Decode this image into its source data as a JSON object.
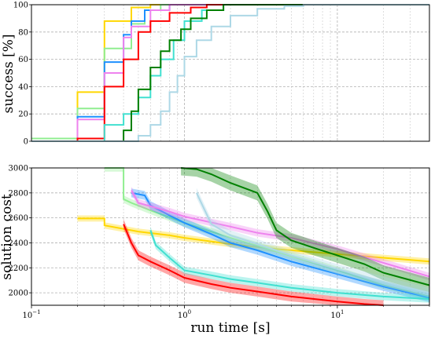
{
  "chart_data": [
    {
      "type": "line",
      "xscale": "log",
      "xlim": [
        0.1,
        40
      ],
      "ylim": [
        0,
        100
      ],
      "xlabel": "",
      "ylabel": "success [%]",
      "yticks": [
        "0",
        "20",
        "40",
        "60",
        "80",
        "100"
      ],
      "series": [
        {
          "color": "#ffd700",
          "points": [
            [
              0.1,
              2
            ],
            [
              0.2,
              2
            ],
            [
              0.2,
              36
            ],
            [
              0.3,
              36
            ],
            [
              0.3,
              88
            ],
            [
              0.45,
              88
            ],
            [
              0.45,
              98
            ],
            [
              0.6,
              98
            ],
            [
              0.6,
              100
            ],
            [
              40,
              100
            ]
          ]
        },
        {
          "color": "#90ee90",
          "points": [
            [
              0.1,
              2
            ],
            [
              0.2,
              2
            ],
            [
              0.2,
              24
            ],
            [
              0.3,
              24
            ],
            [
              0.3,
              68
            ],
            [
              0.45,
              68
            ],
            [
              0.45,
              86
            ],
            [
              0.55,
              86
            ],
            [
              0.55,
              96
            ],
            [
              0.7,
              96
            ],
            [
              0.7,
              100
            ],
            [
              40,
              100
            ]
          ]
        },
        {
          "color": "#1e90ff",
          "points": [
            [
              0.1,
              0
            ],
            [
              0.2,
              0
            ],
            [
              0.2,
              18
            ],
            [
              0.3,
              18
            ],
            [
              0.3,
              58
            ],
            [
              0.4,
              58
            ],
            [
              0.4,
              78
            ],
            [
              0.45,
              78
            ],
            [
              0.45,
              88
            ],
            [
              0.55,
              88
            ],
            [
              0.55,
              96
            ],
            [
              0.8,
              96
            ],
            [
              0.8,
              100
            ],
            [
              40,
              100
            ]
          ]
        },
        {
          "color": "#ee82ee",
          "points": [
            [
              0.1,
              0
            ],
            [
              0.2,
              0
            ],
            [
              0.2,
              16
            ],
            [
              0.3,
              16
            ],
            [
              0.3,
              50
            ],
            [
              0.4,
              50
            ],
            [
              0.4,
              76
            ],
            [
              0.45,
              76
            ],
            [
              0.45,
              84
            ],
            [
              0.6,
              84
            ],
            [
              0.6,
              96
            ],
            [
              0.8,
              96
            ],
            [
              0.8,
              100
            ],
            [
              40,
              100
            ]
          ]
        },
        {
          "color": "#ff0000",
          "points": [
            [
              0.1,
              0
            ],
            [
              0.2,
              0
            ],
            [
              0.2,
              2
            ],
            [
              0.3,
              2
            ],
            [
              0.3,
              40
            ],
            [
              0.4,
              40
            ],
            [
              0.4,
              60
            ],
            [
              0.5,
              60
            ],
            [
              0.5,
              80
            ],
            [
              0.6,
              80
            ],
            [
              0.6,
              88
            ],
            [
              0.8,
              88
            ],
            [
              0.8,
              94
            ],
            [
              1.1,
              94
            ],
            [
              1.1,
              98
            ],
            [
              1.4,
              98
            ],
            [
              1.4,
              100
            ],
            [
              40,
              100
            ]
          ]
        },
        {
          "color": "#40e0d0",
          "points": [
            [
              0.1,
              0
            ],
            [
              0.3,
              0
            ],
            [
              0.3,
              12
            ],
            [
              0.4,
              12
            ],
            [
              0.4,
              20
            ],
            [
              0.5,
              20
            ],
            [
              0.5,
              32
            ],
            [
              0.6,
              32
            ],
            [
              0.6,
              48
            ],
            [
              0.7,
              48
            ],
            [
              0.7,
              60
            ],
            [
              0.85,
              60
            ],
            [
              0.85,
              74
            ],
            [
              1.0,
              74
            ],
            [
              1.0,
              88
            ],
            [
              1.3,
              88
            ],
            [
              1.3,
              96
            ],
            [
              1.8,
              96
            ],
            [
              1.8,
              100
            ],
            [
              40,
              100
            ]
          ]
        },
        {
          "color": "#008000",
          "points": [
            [
              0.1,
              0
            ],
            [
              0.4,
              0
            ],
            [
              0.4,
              8
            ],
            [
              0.45,
              8
            ],
            [
              0.45,
              22
            ],
            [
              0.5,
              22
            ],
            [
              0.5,
              38
            ],
            [
              0.6,
              38
            ],
            [
              0.6,
              54
            ],
            [
              0.7,
              54
            ],
            [
              0.7,
              66
            ],
            [
              0.8,
              66
            ],
            [
              0.8,
              74
            ],
            [
              0.95,
              74
            ],
            [
              0.95,
              82
            ],
            [
              1.1,
              82
            ],
            [
              1.1,
              90
            ],
            [
              1.4,
              90
            ],
            [
              1.4,
              96
            ],
            [
              1.8,
              96
            ],
            [
              1.8,
              100
            ],
            [
              40,
              100
            ]
          ]
        },
        {
          "color": "#add8e6",
          "points": [
            [
              0.1,
              0
            ],
            [
              0.5,
              0
            ],
            [
              0.5,
              4
            ],
            [
              0.6,
              4
            ],
            [
              0.6,
              12
            ],
            [
              0.7,
              12
            ],
            [
              0.7,
              22
            ],
            [
              0.8,
              22
            ],
            [
              0.8,
              36
            ],
            [
              0.9,
              36
            ],
            [
              0.9,
              48
            ],
            [
              1.0,
              48
            ],
            [
              1.0,
              62
            ],
            [
              1.2,
              62
            ],
            [
              1.2,
              74
            ],
            [
              1.5,
              74
            ],
            [
              1.5,
              84
            ],
            [
              2.0,
              84
            ],
            [
              2.0,
              92
            ],
            [
              3.0,
              92
            ],
            [
              3.0,
              97
            ],
            [
              4.5,
              97
            ],
            [
              4.5,
              99
            ],
            [
              6,
              99
            ],
            [
              6,
              100
            ],
            [
              40,
              100
            ]
          ]
        }
      ]
    },
    {
      "type": "line",
      "xscale": "log",
      "xlim": [
        0.1,
        40
      ],
      "ylim": [
        1900,
        3000
      ],
      "xlabel": "run time [s]",
      "ylabel": "solution cost",
      "yticks": [
        "2000",
        "2200",
        "2400",
        "2600",
        "2800",
        "3000"
      ],
      "xticks": [
        {
          "value": 0.1,
          "base": "10",
          "exp": "−1"
        },
        {
          "value": 1,
          "base": "10",
          "exp": "0"
        },
        {
          "value": 10,
          "base": "10",
          "exp": "1"
        }
      ],
      "series": [
        {
          "color": "#ffd700",
          "band": 25,
          "points": [
            [
              0.2,
              2595
            ],
            [
              0.3,
              2595
            ],
            [
              0.3,
              2540
            ],
            [
              0.5,
              2490
            ],
            [
              0.8,
              2460
            ],
            [
              1.0,
              2440
            ],
            [
              2,
              2390
            ],
            [
              4,
              2350
            ],
            [
              10,
              2310
            ],
            [
              20,
              2280
            ],
            [
              40,
              2250
            ]
          ]
        },
        {
          "color": "#90ee90",
          "band": 30,
          "points": [
            [
              0.3,
              3000
            ],
            [
              0.4,
              3000
            ],
            [
              0.4,
              2750
            ],
            [
              0.45,
              2720
            ],
            [
              0.6,
              2660
            ],
            [
              1.0,
              2560
            ],
            [
              2,
              2440
            ],
            [
              4,
              2330
            ],
            [
              10,
              2180
            ],
            [
              20,
              2060
            ],
            [
              40,
              1970
            ]
          ]
        },
        {
          "color": "#1e90ff",
          "band": 35,
          "points": [
            [
              0.45,
              2800
            ],
            [
              0.55,
              2780
            ],
            [
              0.6,
              2700
            ],
            [
              0.8,
              2620
            ],
            [
              1.0,
              2560
            ],
            [
              1.5,
              2470
            ],
            [
              2,
              2400
            ],
            [
              3,
              2340
            ],
            [
              5,
              2250
            ],
            [
              10,
              2150
            ],
            [
              20,
              2050
            ],
            [
              40,
              1960
            ]
          ]
        },
        {
          "color": "#ee82ee",
          "band": 30,
          "points": [
            [
              0.45,
              2820
            ],
            [
              0.5,
              2720
            ],
            [
              0.8,
              2650
            ],
            [
              1.0,
              2610
            ],
            [
              2,
              2530
            ],
            [
              3,
              2480
            ],
            [
              5,
              2440
            ],
            [
              10,
              2350
            ],
            [
              20,
              2240
            ],
            [
              40,
              2130
            ]
          ]
        },
        {
          "color": "#ff0000",
          "band": 40,
          "points": [
            [
              0.4,
              2550
            ],
            [
              0.45,
              2400
            ],
            [
              0.5,
              2300
            ],
            [
              0.6,
              2250
            ],
            [
              0.8,
              2180
            ],
            [
              1.0,
              2120
            ],
            [
              1.5,
              2070
            ],
            [
              2,
              2040
            ],
            [
              3,
              2010
            ],
            [
              5,
              1970
            ],
            [
              10,
              1930
            ],
            [
              15,
              1910
            ],
            [
              20,
              1900
            ]
          ]
        },
        {
          "color": "#40e0d0",
          "band": 30,
          "points": [
            [
              0.6,
              2500
            ],
            [
              0.65,
              2380
            ],
            [
              0.8,
              2280
            ],
            [
              1.0,
              2180
            ],
            [
              1.5,
              2140
            ],
            [
              2,
              2110
            ],
            [
              3,
              2080
            ],
            [
              5,
              2040
            ],
            [
              10,
              2000
            ],
            [
              20,
              1970
            ],
            [
              40,
              1950
            ]
          ]
        },
        {
          "color": "#008000",
          "band": 60,
          "points": [
            [
              0.95,
              3000
            ],
            [
              1.2,
              2990
            ],
            [
              1.5,
              2950
            ],
            [
              2,
              2880
            ],
            [
              3,
              2800
            ],
            [
              3.5,
              2650
            ],
            [
              4,
              2500
            ],
            [
              5,
              2420
            ],
            [
              7,
              2360
            ],
            [
              10,
              2300
            ],
            [
              15,
              2230
            ],
            [
              20,
              2160
            ],
            [
              40,
              2060
            ]
          ]
        },
        {
          "color": "#add8e6",
          "band": 40,
          "points": [
            [
              1.2,
              2800
            ],
            [
              1.5,
              2550
            ],
            [
              2,
              2460
            ],
            [
              3,
              2390
            ],
            [
              5,
              2300
            ],
            [
              10,
              2190
            ],
            [
              20,
              2090
            ],
            [
              40,
              2000
            ]
          ]
        }
      ]
    }
  ]
}
